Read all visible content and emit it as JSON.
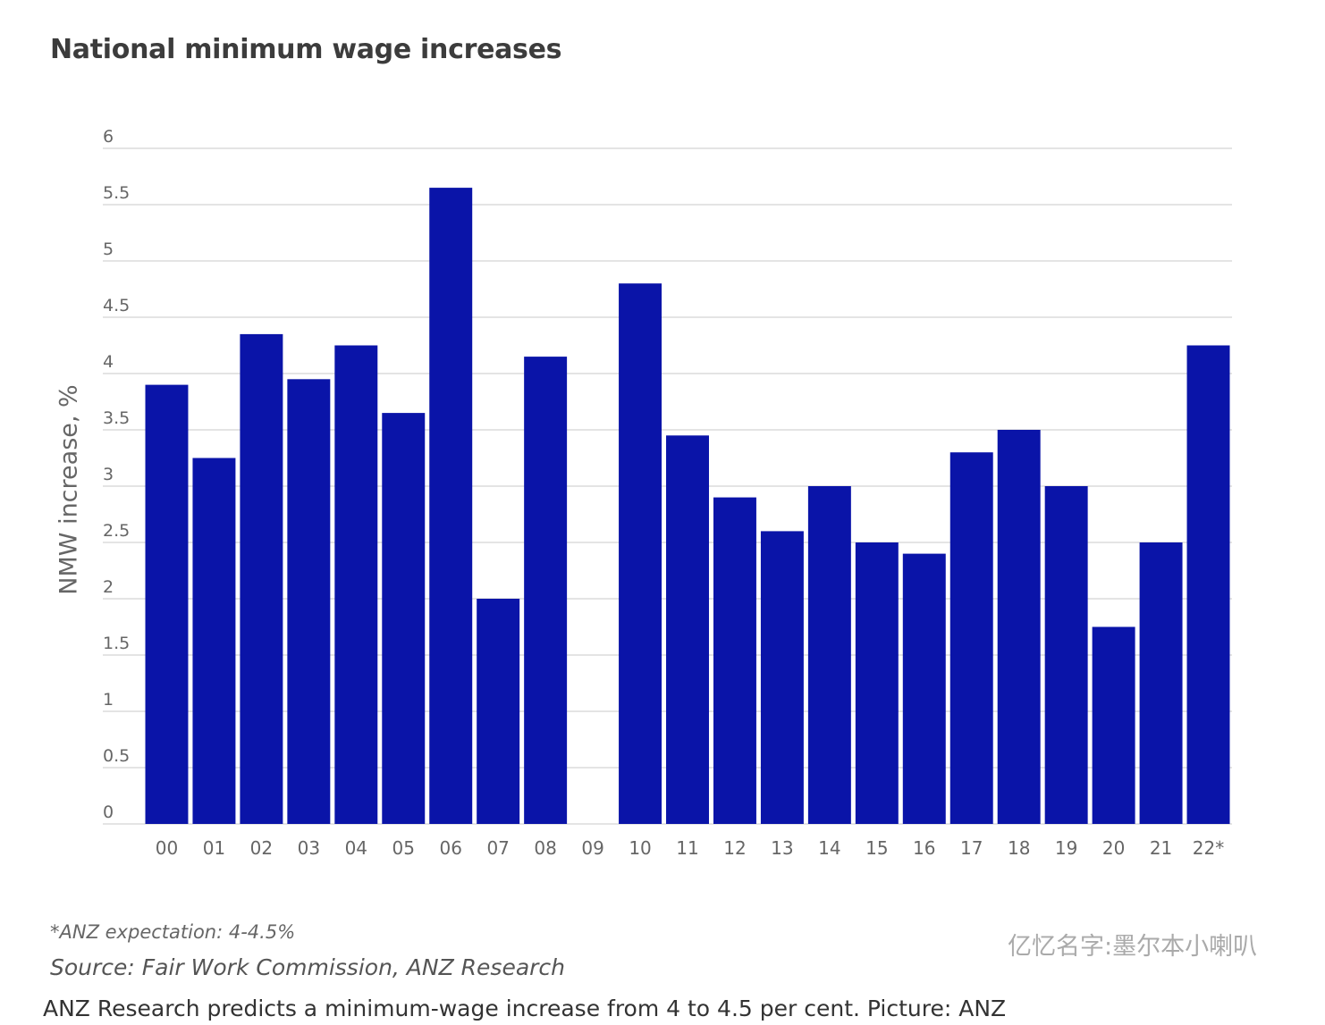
{
  "chart_data": {
    "type": "bar",
    "title": "National minimum wage increases",
    "ylabel": "NMW increase, %",
    "xlabel": "",
    "categories": [
      "00",
      "01",
      "02",
      "03",
      "04",
      "05",
      "06",
      "07",
      "08",
      "09",
      "10",
      "11",
      "12",
      "13",
      "14",
      "15",
      "16",
      "17",
      "18",
      "19",
      "20",
      "21",
      "22*"
    ],
    "values": [
      3.9,
      3.25,
      4.35,
      3.95,
      4.25,
      3.65,
      5.65,
      2.0,
      4.15,
      0,
      4.8,
      3.45,
      2.9,
      2.6,
      3.0,
      2.5,
      2.4,
      3.3,
      3.5,
      3.0,
      1.75,
      2.5,
      4.25
    ],
    "ylim": [
      0,
      6
    ],
    "yticks": [
      "0",
      "0.5",
      "1",
      "1.5",
      "2",
      "2.5",
      "3",
      "3.5",
      "4",
      "4.5",
      "5",
      "5.5",
      "6"
    ],
    "grid": true,
    "bar_color": "#0a14a8",
    "note": "*ANZ expectation: 4-4.5%",
    "source": "Source: Fair Work Commission, ANZ Research"
  },
  "caption": "ANZ Research predicts a minimum-wage increase from 4 to 4.5 per cent. Picture: ANZ",
  "watermark": "亿忆名字:墨尔本小喇叭"
}
